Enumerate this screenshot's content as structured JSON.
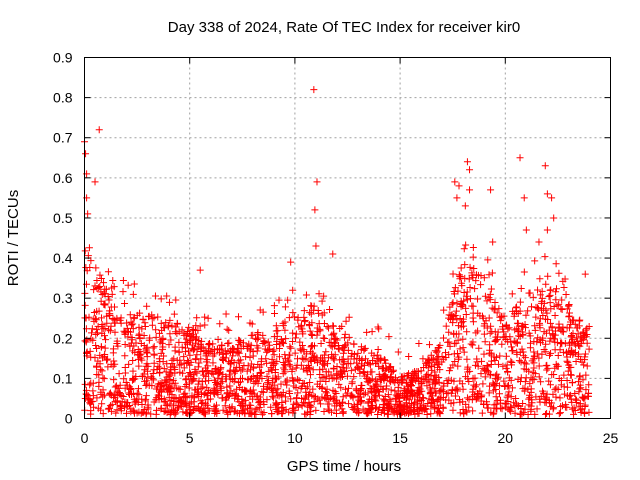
{
  "chart_data": {
    "type": "scatter",
    "title": "Day 338 of 2024, Rate Of TEC Index for receiver kir0",
    "xlabel": "GPS time / hours",
    "ylabel": "ROTI / TECUs",
    "xlim": [
      0,
      25
    ],
    "ylim": [
      0,
      0.9
    ],
    "xticks": [
      0,
      5,
      10,
      15,
      20,
      25
    ],
    "xtick_labels": [
      "0",
      "5",
      "10",
      "15",
      "20",
      "25"
    ],
    "yticks": [
      0,
      0.1,
      0.2,
      0.3,
      0.4,
      0.5,
      0.6,
      0.7,
      0.8,
      0.9
    ],
    "ytick_labels": [
      "0",
      "0.1",
      "0.2",
      "0.3",
      "0.4",
      "0.5",
      "0.6",
      "0.7",
      "0.8",
      "0.9"
    ],
    "grid": true,
    "marker": "+",
    "color": "#ff0000",
    "series": [
      {
        "name": "ROTI",
        "envelope_x": [
          0,
          0.5,
          1,
          1.5,
          2,
          3,
          4,
          5,
          6,
          7,
          8,
          9,
          10,
          11,
          12,
          13,
          14,
          15,
          16,
          17,
          17.5,
          18,
          19,
          20,
          21,
          22,
          23,
          24
        ],
        "envelope_y": [
          0.45,
          0.38,
          0.34,
          0.28,
          0.26,
          0.25,
          0.24,
          0.22,
          0.2,
          0.18,
          0.2,
          0.22,
          0.25,
          0.28,
          0.22,
          0.18,
          0.15,
          0.1,
          0.12,
          0.18,
          0.3,
          0.38,
          0.35,
          0.25,
          0.3,
          0.35,
          0.28,
          0.2
        ],
        "outliers": [
          {
            "x": 0.0,
            "y": 0.69
          },
          {
            "x": 0.05,
            "y": 0.66
          },
          {
            "x": 0.1,
            "y": 0.61
          },
          {
            "x": 0.1,
            "y": 0.55
          },
          {
            "x": 0.15,
            "y": 0.51
          },
          {
            "x": 0.5,
            "y": 0.59
          },
          {
            "x": 0.7,
            "y": 0.72
          },
          {
            "x": 10.9,
            "y": 0.82
          },
          {
            "x": 11.05,
            "y": 0.59
          },
          {
            "x": 10.95,
            "y": 0.52
          },
          {
            "x": 11.0,
            "y": 0.43
          },
          {
            "x": 11.8,
            "y": 0.41
          },
          {
            "x": 17.6,
            "y": 0.59
          },
          {
            "x": 17.8,
            "y": 0.58
          },
          {
            "x": 17.7,
            "y": 0.55
          },
          {
            "x": 18.2,
            "y": 0.64
          },
          {
            "x": 18.3,
            "y": 0.62
          },
          {
            "x": 18.3,
            "y": 0.57
          },
          {
            "x": 18.1,
            "y": 0.53
          },
          {
            "x": 19.3,
            "y": 0.57
          },
          {
            "x": 19.4,
            "y": 0.44
          },
          {
            "x": 20.7,
            "y": 0.65
          },
          {
            "x": 20.9,
            "y": 0.55
          },
          {
            "x": 21.9,
            "y": 0.63
          },
          {
            "x": 22.0,
            "y": 0.56
          },
          {
            "x": 22.2,
            "y": 0.55
          },
          {
            "x": 22.3,
            "y": 0.5
          },
          {
            "x": 22.0,
            "y": 0.47
          },
          {
            "x": 21.6,
            "y": 0.44
          },
          {
            "x": 21.0,
            "y": 0.47
          },
          {
            "x": 23.8,
            "y": 0.36
          },
          {
            "x": 5.5,
            "y": 0.37
          },
          {
            "x": 9.8,
            "y": 0.39
          }
        ]
      }
    ]
  }
}
